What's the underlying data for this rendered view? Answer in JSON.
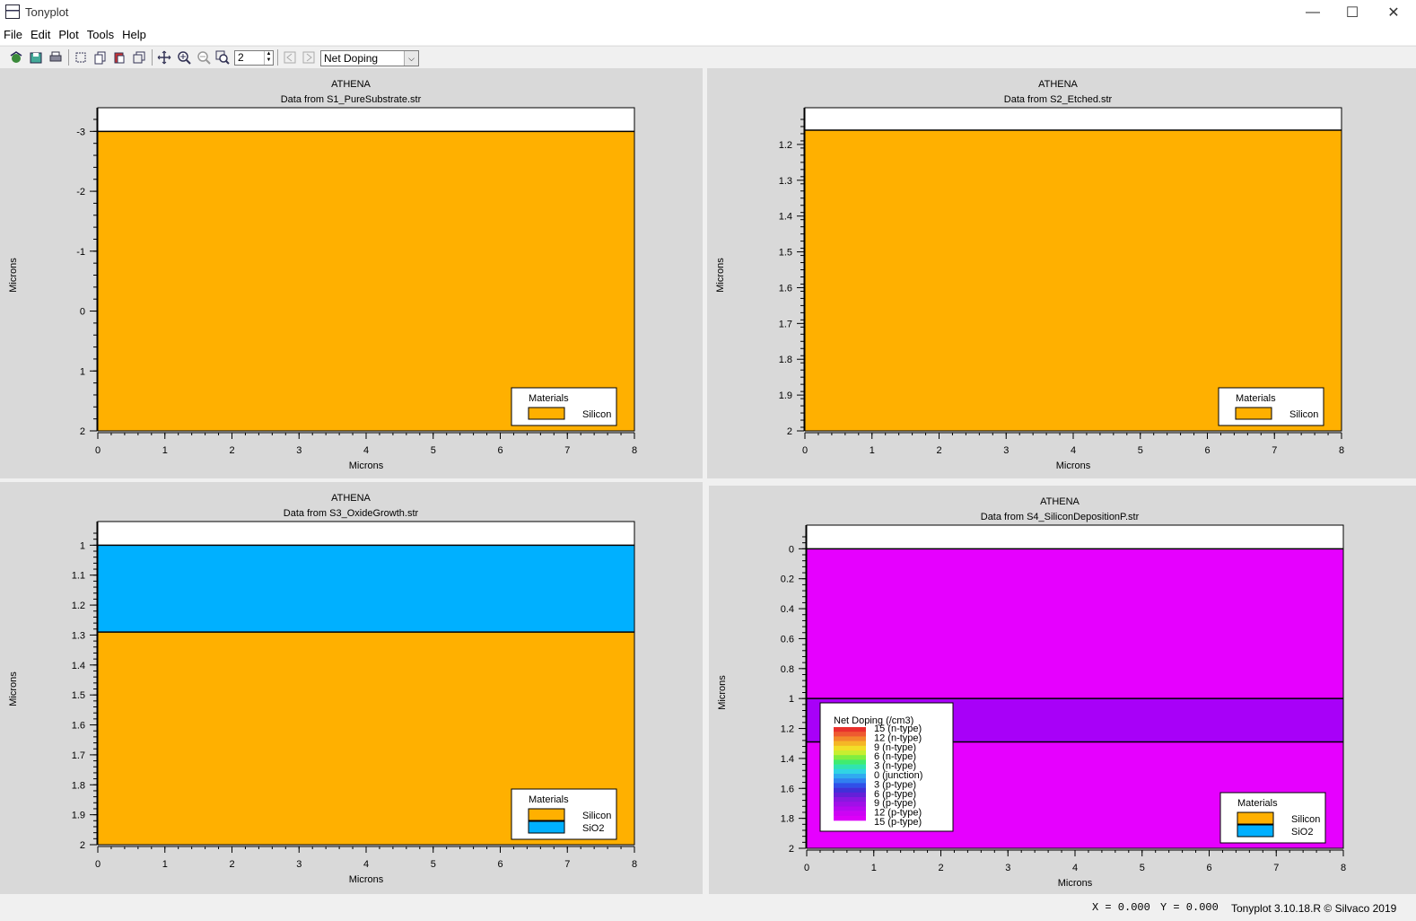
{
  "window": {
    "title": "Tonyplot",
    "minimize": "—",
    "maximize": "☐",
    "close": "✕"
  },
  "menu": [
    "File",
    "Edit",
    "Plot",
    "Tools",
    "Help"
  ],
  "toolbar": {
    "zoom_level": "2",
    "quantity_select": "Net Doping"
  },
  "colors": {
    "silicon": "#ffb000",
    "sio2": "#00b0ff",
    "doping_p": "#e600ff",
    "doping_p2": "#a800f8",
    "panel_bg": "#d9d9d9"
  },
  "status": {
    "x": "X = 0.000",
    "y": "Y = 0.000",
    "version": "Tonyplot 3.10.18.R © Silvaco 2019"
  },
  "plots": [
    {
      "title": "ATHENA",
      "subtitle": "Data from S1_PureSubstrate.str",
      "xlabel": "Microns",
      "ylabel": "Microns",
      "x_ticks": [
        "0",
        "1",
        "2",
        "3",
        "4",
        "5",
        "6",
        "7",
        "8"
      ],
      "y_ticks": [
        "-3",
        "-2",
        "-1",
        "0",
        "1",
        "2"
      ],
      "y_range": [
        -3.2,
        2
      ],
      "y_tick_values": [
        -3,
        -2,
        -1,
        0,
        1,
        2
      ],
      "y_minor": 0.2,
      "layers": [
        {
          "material": "silicon",
          "from": -3,
          "to": 2
        }
      ],
      "legend": {
        "title": "Materials",
        "items": [
          {
            "label": "Silicon",
            "material": "silicon"
          }
        ]
      }
    },
    {
      "title": "ATHENA",
      "subtitle": "Data from S2_Etched.str",
      "xlabel": "Microns",
      "ylabel": "Microns",
      "x_ticks": [
        "0",
        "1",
        "2",
        "3",
        "4",
        "5",
        "6",
        "7",
        "8"
      ],
      "y_ticks": [
        "1.2",
        "1.3",
        "1.4",
        "1.5",
        "1.6",
        "1.7",
        "1.8",
        "1.9",
        "2"
      ],
      "y_range": [
        1.13,
        2
      ],
      "y_tick_values": [
        1.2,
        1.3,
        1.4,
        1.5,
        1.6,
        1.7,
        1.8,
        1.9,
        2
      ],
      "y_minor": 0.02,
      "layers": [
        {
          "material": "silicon",
          "from": 1.16,
          "to": 2
        }
      ],
      "legend": {
        "title": "Materials",
        "items": [
          {
            "label": "Silicon",
            "material": "silicon"
          }
        ]
      }
    },
    {
      "title": "ATHENA",
      "subtitle": "Data from S3_OxideGrowth.str",
      "xlabel": "Microns",
      "ylabel": "Microns",
      "x_ticks": [
        "0",
        "1",
        "2",
        "3",
        "4",
        "5",
        "6",
        "7",
        "8"
      ],
      "y_ticks": [
        "1",
        "1.1",
        "1.2",
        "1.3",
        "1.4",
        "1.5",
        "1.6",
        "1.7",
        "1.8",
        "1.9",
        "2"
      ],
      "y_range": [
        0.96,
        2
      ],
      "y_tick_values": [
        1,
        1.1,
        1.2,
        1.3,
        1.4,
        1.5,
        1.6,
        1.7,
        1.8,
        1.9,
        2
      ],
      "y_minor": 0.02,
      "layers": [
        {
          "material": "sio2",
          "from": 1.0,
          "to": 1.29
        },
        {
          "material": "silicon",
          "from": 1.29,
          "to": 2
        }
      ],
      "legend": {
        "title": "Materials",
        "items": [
          {
            "label": "Silicon",
            "material": "silicon"
          },
          {
            "label": "SiO2",
            "material": "sio2"
          }
        ]
      }
    },
    {
      "title": "ATHENA",
      "subtitle": "Data from S4_SiliconDepositionP.str",
      "xlabel": "Microns",
      "ylabel": "Microns",
      "x_ticks": [
        "0",
        "1",
        "2",
        "3",
        "4",
        "5",
        "6",
        "7",
        "8"
      ],
      "y_ticks": [
        "0",
        "0.2",
        "0.4",
        "0.6",
        "0.8",
        "1",
        "1.2",
        "1.4",
        "1.6",
        "1.8",
        "2"
      ],
      "y_range": [
        -0.08,
        2
      ],
      "y_tick_values": [
        0,
        0.2,
        0.4,
        0.6,
        0.8,
        1,
        1.2,
        1.4,
        1.6,
        1.8,
        2
      ],
      "y_minor": 0.04,
      "layers": [
        {
          "material": "doping_p",
          "from": 0.0,
          "to": 1.0
        },
        {
          "material": "doping_p2",
          "from": 1.0,
          "to": 1.29
        },
        {
          "material": "doping_p",
          "from": 1.29,
          "to": 2
        }
      ],
      "legend": {
        "title": "Materials",
        "items": [
          {
            "label": "Silicon",
            "material": "silicon"
          },
          {
            "label": "SiO2",
            "material": "sio2"
          }
        ]
      },
      "doping_legend": {
        "title": "Net Doping (/cm3)",
        "labels": [
          "15 (n-type)",
          "12 (n-type)",
          "9 (n-type)",
          "6 (n-type)",
          "3 (n-type)",
          "0 (junction)",
          "3 (p-type)",
          "6 (p-type)",
          "9 (p-type)",
          "12 (p-type)",
          "15 (p-type)"
        ],
        "colors": [
          "#e8302c",
          "#ee5a30",
          "#f28a2a",
          "#f5b626",
          "#f2de28",
          "#c8ee30",
          "#80ee40",
          "#40ec70",
          "#30e4b0",
          "#30d4e4",
          "#30aaf0",
          "#3080f0",
          "#3050e8",
          "#4030d8",
          "#6420d8",
          "#8818e0",
          "#a010e8",
          "#b808f0",
          "#cc04f4",
          "#dc00f8"
        ]
      }
    }
  ]
}
